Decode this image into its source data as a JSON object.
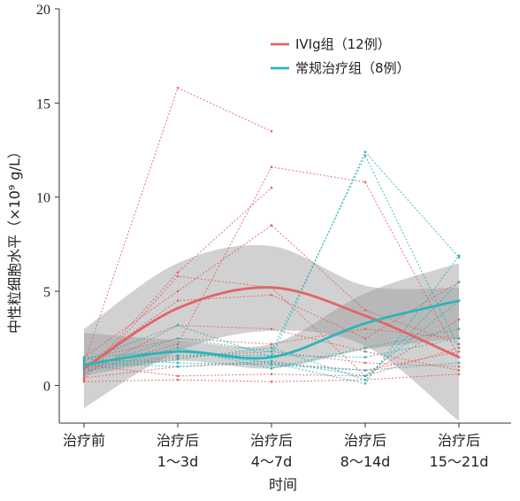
{
  "chart_data": {
    "type": "line",
    "title": "",
    "xlabel": "时间",
    "ylabel": "中性粒细胞水平（×10⁹ g/L）",
    "ylim": [
      -2,
      20
    ],
    "yticks": [
      0,
      5,
      10,
      15,
      20
    ],
    "categories": [
      {
        "line1": "治疗前",
        "line2": ""
      },
      {
        "line1": "治疗后",
        "line2": "1～3d"
      },
      {
        "line1": "治疗后",
        "line2": "4～7d"
      },
      {
        "line1": "治疗后",
        "line2": "8～14d"
      },
      {
        "line1": "治疗后",
        "line2": "15～21d"
      }
    ],
    "legend": {
      "position": "top-right"
    },
    "series": [
      {
        "name": "IVIg组（12例）",
        "color": "#e06666",
        "mean": [
          0.9,
          4.1,
          5.2,
          3.7,
          1.5
        ],
        "band_upper": [
          3.0,
          6.5,
          7.4,
          5.3,
          5.2
        ],
        "band_lower": [
          -1.2,
          1.8,
          2.9,
          2.1,
          -1.9
        ],
        "individual": [
          [
            1.2,
            15.8,
            13.5,
            null,
            null
          ],
          [
            0.8,
            2.2,
            11.6,
            10.8,
            1.5
          ],
          [
            0.5,
            6.0,
            10.5,
            null,
            1.2
          ],
          [
            1.5,
            5.0,
            8.5,
            4.0,
            2.2
          ],
          [
            0.3,
            5.8,
            5.2,
            0.5,
            3.5
          ],
          [
            1.0,
            4.5,
            4.8,
            2.5,
            5.5
          ],
          [
            0.6,
            3.2,
            3.0,
            1.8,
            0.8
          ],
          [
            1.4,
            2.5,
            2.2,
            3.0,
            2.5
          ],
          [
            0.9,
            1.5,
            1.8,
            1.2,
            1.0
          ],
          [
            0.4,
            1.0,
            1.2,
            0.8,
            1.8
          ],
          [
            1.1,
            0.5,
            0.6,
            0.5,
            2.0
          ],
          [
            0.2,
            0.3,
            0.2,
            0.3,
            0.6
          ]
        ]
      },
      {
        "name": "常规治疗组（8例）",
        "color": "#2bb5b8",
        "mean": [
          1.1,
          1.8,
          1.5,
          3.3,
          4.5
        ],
        "band_upper": [
          2.8,
          2.4,
          2.2,
          4.9,
          6.5
        ],
        "band_lower": [
          0.5,
          1.3,
          0.9,
          1.9,
          2.5
        ],
        "individual": [
          [
            1.3,
            3.2,
            1.5,
            12.4,
            6.8
          ],
          [
            0.9,
            2.5,
            1.8,
            12.2,
            2.0
          ],
          [
            1.5,
            1.8,
            1.2,
            0.1,
            6.9
          ],
          [
            0.8,
            1.4,
            2.0,
            0.3,
            5.5
          ],
          [
            1.2,
            1.0,
            1.3,
            0.5,
            4.5
          ],
          [
            0.7,
            2.0,
            0.9,
            2.0,
            3.0
          ],
          [
            1.0,
            1.6,
            1.6,
            1.5,
            2.5
          ],
          [
            1.4,
            1.2,
            1.1,
            0.8,
            1.2
          ]
        ]
      }
    ]
  }
}
